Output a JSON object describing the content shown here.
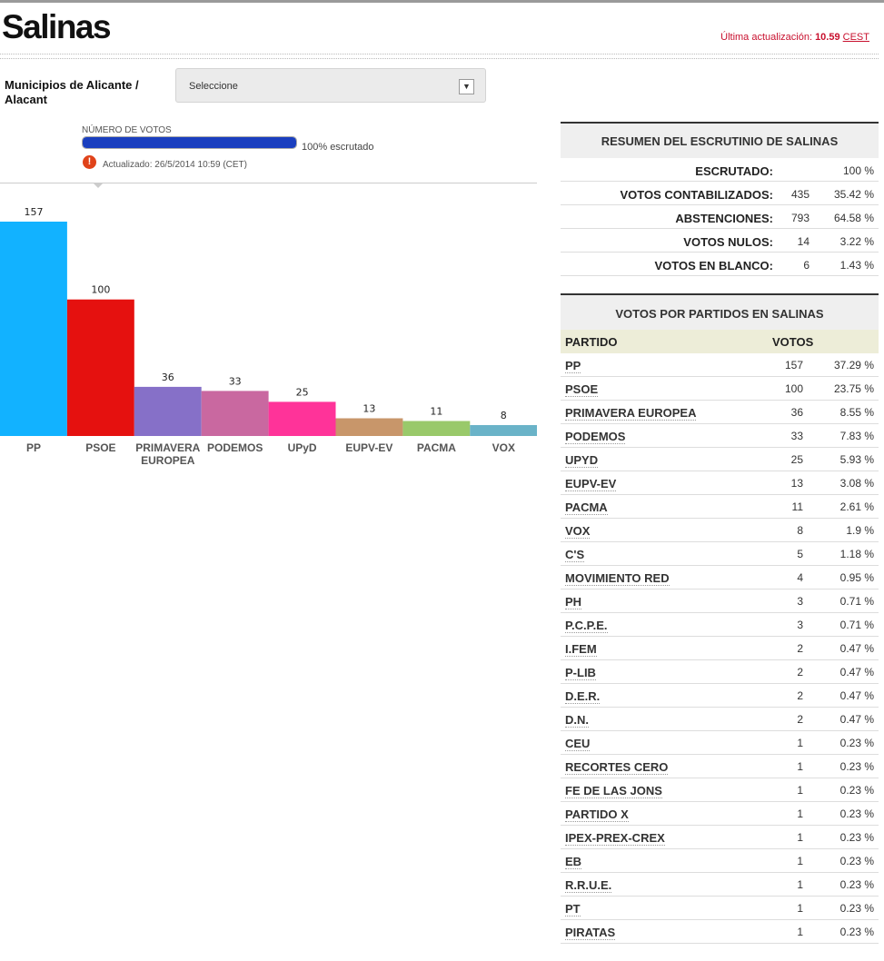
{
  "header": {
    "title": "Salinas",
    "update_label": "Última actualización:",
    "update_time": "10.59",
    "update_tz": "CEST"
  },
  "selector": {
    "label_line1": "Municipios de Alicante /",
    "label_line2": "Alacant",
    "value": "Seleccione"
  },
  "progress": {
    "label": "NÚMERO DE VOTOS",
    "percent": 100,
    "text": "100% escrutado",
    "updated": "Actualizado: 26/5/2014 10:59 (CET)"
  },
  "chart_data": {
    "type": "bar",
    "categories": [
      "PP",
      "PSOE",
      "PRIMAVERA EUROPEA",
      "PODEMOS",
      "UPyD",
      "EUPV-EV",
      "PACMA",
      "VOX"
    ],
    "category_lines": [
      [
        "PP"
      ],
      [
        "PSOE"
      ],
      [
        "PRIMAVERA",
        "EUROPEA"
      ],
      [
        "PODEMOS"
      ],
      [
        "UPyD"
      ],
      [
        "EUPV-EV"
      ],
      [
        "PACMA"
      ],
      [
        "VOX"
      ]
    ],
    "values": [
      157,
      100,
      36,
      33,
      25,
      13,
      11,
      8
    ],
    "colors": [
      "#12b2ff",
      "#e5110f",
      "#8670c8",
      "#c968a0",
      "#ff3399",
      "#c8966a",
      "#99c96a",
      "#6ab3c8"
    ],
    "ylim": [
      0,
      157
    ],
    "grid": false
  },
  "summary": {
    "title": "RESUMEN DEL ESCRUTINIO DE SALINAS",
    "rows": [
      {
        "label": "ESCRUTADO:",
        "count": "",
        "pct": "100 %"
      },
      {
        "label": "VOTOS CONTABILIZADOS:",
        "count": "435",
        "pct": "35.42 %"
      },
      {
        "label": "ABSTENCIONES:",
        "count": "793",
        "pct": "64.58 %"
      },
      {
        "label": "VOTOS NULOS:",
        "count": "14",
        "pct": "3.22 %"
      },
      {
        "label": "VOTOS EN BLANCO:",
        "count": "6",
        "pct": "1.43 %"
      }
    ]
  },
  "parties": {
    "title": "VOTOS POR PARTIDOS EN SALINAS",
    "col_party": "PARTIDO",
    "col_votes": "VOTOS",
    "rows": [
      {
        "name": "PP",
        "votes": "157",
        "pct": "37.29 %"
      },
      {
        "name": "PSOE",
        "votes": "100",
        "pct": "23.75 %"
      },
      {
        "name": "PRIMAVERA EUROPEA",
        "votes": "36",
        "pct": "8.55 %"
      },
      {
        "name": "PODEMOS",
        "votes": "33",
        "pct": "7.83 %"
      },
      {
        "name": "UPYD",
        "votes": "25",
        "pct": "5.93 %"
      },
      {
        "name": "EUPV-EV",
        "votes": "13",
        "pct": "3.08 %"
      },
      {
        "name": "PACMA",
        "votes": "11",
        "pct": "2.61 %"
      },
      {
        "name": "VOX",
        "votes": "8",
        "pct": "1.9 %"
      },
      {
        "name": "C'S",
        "votes": "5",
        "pct": "1.18 %"
      },
      {
        "name": "MOVIMIENTO RED",
        "votes": "4",
        "pct": "0.95 %"
      },
      {
        "name": "PH",
        "votes": "3",
        "pct": "0.71 %"
      },
      {
        "name": "P.C.P.E.",
        "votes": "3",
        "pct": "0.71 %"
      },
      {
        "name": "I.FEM",
        "votes": "2",
        "pct": "0.47 %"
      },
      {
        "name": "P-LIB",
        "votes": "2",
        "pct": "0.47 %"
      },
      {
        "name": "D.E.R.",
        "votes": "2",
        "pct": "0.47 %"
      },
      {
        "name": "D.N.",
        "votes": "2",
        "pct": "0.47 %"
      },
      {
        "name": "CEU",
        "votes": "1",
        "pct": "0.23 %"
      },
      {
        "name": "RECORTES CERO",
        "votes": "1",
        "pct": "0.23 %"
      },
      {
        "name": "FE DE LAS JONS",
        "votes": "1",
        "pct": "0.23 %"
      },
      {
        "name": "PARTIDO X",
        "votes": "1",
        "pct": "0.23 %"
      },
      {
        "name": "IPEX-PREX-CREX",
        "votes": "1",
        "pct": "0.23 %"
      },
      {
        "name": "EB",
        "votes": "1",
        "pct": "0.23 %"
      },
      {
        "name": "R.R.U.E.",
        "votes": "1",
        "pct": "0.23 %"
      },
      {
        "name": "PT",
        "votes": "1",
        "pct": "0.23 %"
      },
      {
        "name": "PIRATAS",
        "votes": "1",
        "pct": "0.23 %"
      }
    ]
  }
}
